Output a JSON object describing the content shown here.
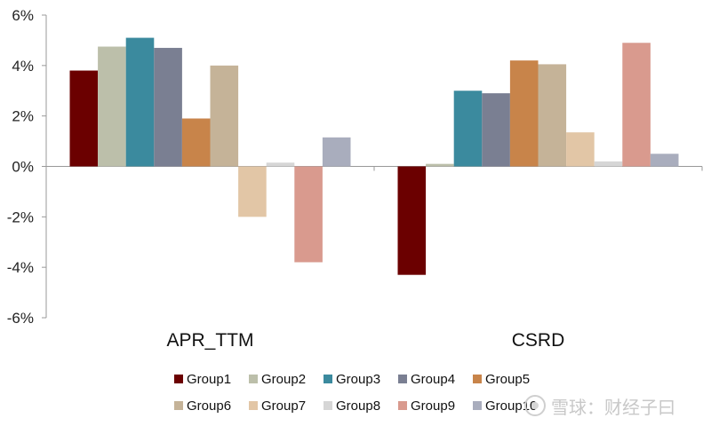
{
  "chart_data": {
    "type": "bar",
    "categories": [
      "APR_TTM",
      "CSRD"
    ],
    "y_unit": "%",
    "ylim": [
      -6,
      6
    ],
    "yticks": [
      -6,
      -4,
      -2,
      0,
      2,
      4,
      6
    ],
    "grid": false,
    "legend_position": "bottom",
    "series": [
      {
        "name": "Group1",
        "color": "#6b0000",
        "values": [
          3.8,
          -4.3
        ]
      },
      {
        "name": "Group2",
        "color": "#bcbfaa",
        "values": [
          4.75,
          0.1
        ]
      },
      {
        "name": "Group3",
        "color": "#3b8a9e",
        "values": [
          5.1,
          3.0
        ]
      },
      {
        "name": "Group4",
        "color": "#7a7f92",
        "values": [
          4.7,
          2.9
        ]
      },
      {
        "name": "Group5",
        "color": "#c8844a",
        "values": [
          1.9,
          4.2
        ]
      },
      {
        "name": "Group6",
        "color": "#c5b398",
        "values": [
          4.0,
          4.05
        ]
      },
      {
        "name": "Group7",
        "color": "#e2c6a6",
        "values": [
          -2.0,
          1.35
        ]
      },
      {
        "name": "Group8",
        "color": "#d6d6d6",
        "values": [
          0.15,
          0.2
        ]
      },
      {
        "name": "Group9",
        "color": "#d99a8e",
        "values": [
          -3.8,
          4.9
        ]
      },
      {
        "name": "Group10",
        "color": "#a9adbd",
        "values": [
          1.15,
          0.5
        ]
      }
    ]
  },
  "watermark": {
    "text": "雪球：财经子曰"
  }
}
